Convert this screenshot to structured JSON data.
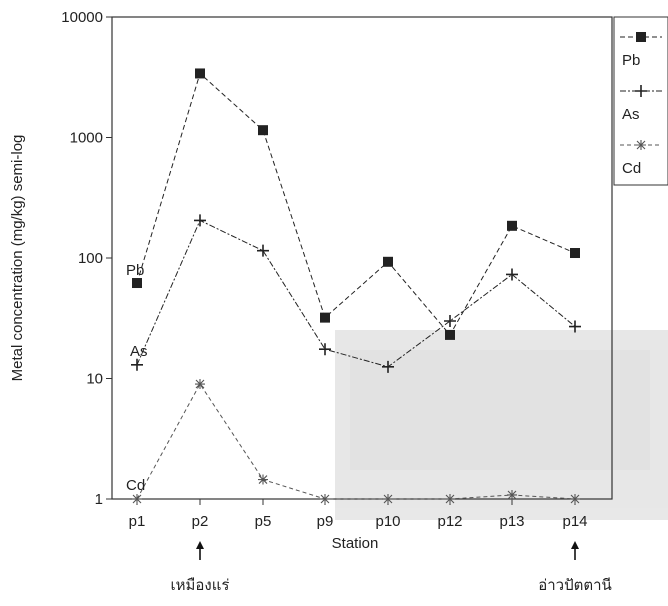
{
  "chart_data": {
    "type": "line",
    "xlabel": "Station",
    "ylabel": "Metal concentration (mg/kg) semi-log",
    "y_scale": "log",
    "ylim": [
      1,
      10000
    ],
    "y_ticks": [
      "1",
      "10",
      "100",
      "1000",
      "10000"
    ],
    "categories": [
      "p1",
      "p2",
      "p5",
      "p9",
      "p10",
      "p12",
      "p13",
      "p14"
    ],
    "series": [
      {
        "name": "Pb",
        "marker": "square",
        "color": "#222222",
        "values": [
          62,
          3400,
          1150,
          32,
          93,
          23,
          185,
          110
        ]
      },
      {
        "name": "As",
        "marker": "plus",
        "color": "#222222",
        "values": [
          13,
          205,
          115,
          17.5,
          12.5,
          30,
          73,
          27
        ]
      },
      {
        "name": "Cd",
        "marker": "star",
        "color": "#555555",
        "values": [
          1,
          9,
          1.45,
          1,
          1,
          1,
          1.08,
          1
        ]
      }
    ],
    "legend": {
      "position": "top-right",
      "entries": [
        "Pb",
        "As",
        "Cd"
      ]
    },
    "annotations": [
      {
        "text": "เหมืองแร่",
        "category": "p2",
        "arrow": "up"
      },
      {
        "text": "อ่าวปัตตานี",
        "category": "p14",
        "arrow": "up"
      }
    ],
    "grid": false
  }
}
